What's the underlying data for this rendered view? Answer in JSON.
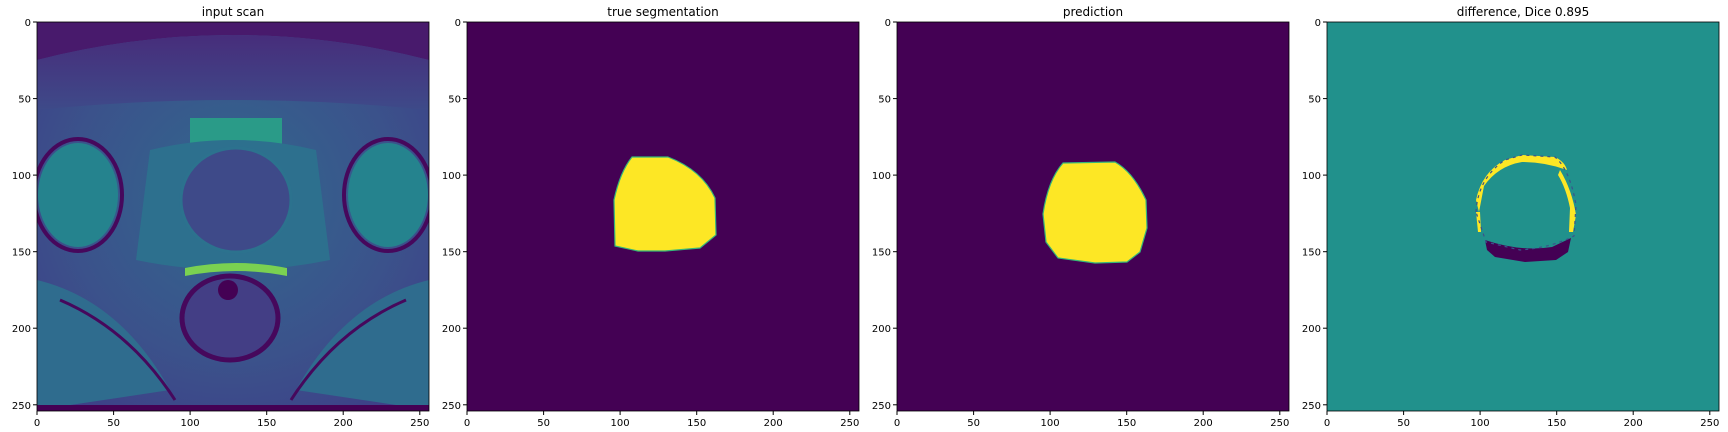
{
  "figure": {
    "colors": {
      "viridis_dark": "#440154",
      "viridis_mid": "#21918c",
      "viridis_yellow": "#fde725",
      "viridis_teal_green": "#35b779",
      "viridis_blue": "#3b528b"
    },
    "panels": [
      {
        "title": "input scan",
        "kind": "mri",
        "xticks": [
          "0",
          "50",
          "100",
          "150",
          "200",
          "250"
        ],
        "yticks": [
          "0",
          "50",
          "100",
          "150",
          "200",
          "250"
        ]
      },
      {
        "title": "true segmentation",
        "kind": "mask",
        "xticks": [
          "0",
          "50",
          "100",
          "150",
          "200",
          "250"
        ],
        "yticks": [
          "0",
          "50",
          "100",
          "150",
          "200",
          "250"
        ]
      },
      {
        "title": "prediction",
        "kind": "mask",
        "xticks": [
          "0",
          "50",
          "100",
          "150",
          "200",
          "250"
        ],
        "yticks": [
          "0",
          "50",
          "100",
          "150",
          "200",
          "250"
        ]
      },
      {
        "title": "difference, Dice 0.895",
        "kind": "difference",
        "xticks": [
          "0",
          "50",
          "100",
          "150",
          "200",
          "250"
        ],
        "yticks": [
          "0",
          "50",
          "100",
          "150",
          "200",
          "250"
        ]
      }
    ]
  }
}
